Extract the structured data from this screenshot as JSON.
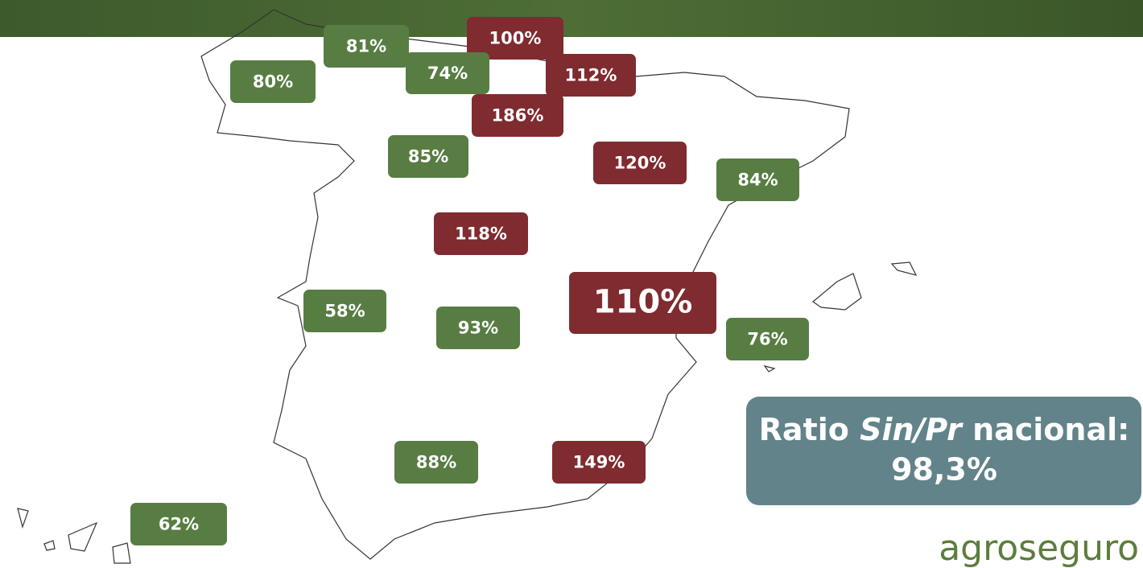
{
  "labels": [
    {
      "text": "81%",
      "color": "#587d43"
    },
    {
      "text": "100%",
      "color": "#7f2b2f"
    },
    {
      "text": "80%",
      "color": "#587d43"
    },
    {
      "text": "74%",
      "color": "#587d43"
    },
    {
      "text": "112%",
      "color": "#7f2b2f"
    },
    {
      "text": "186%",
      "color": "#7f2b2f"
    },
    {
      "text": "85%",
      "color": "#587d43"
    },
    {
      "text": "120%",
      "color": "#7f2b2f"
    },
    {
      "text": "84%",
      "color": "#587d43"
    },
    {
      "text": "118%",
      "color": "#7f2b2f"
    },
    {
      "text": "110%",
      "color": "#7f2b2f"
    },
    {
      "text": "58%",
      "color": "#587d43"
    },
    {
      "text": "93%",
      "color": "#587d43"
    },
    {
      "text": "76%",
      "color": "#587d43"
    },
    {
      "text": "88%",
      "color": "#587d43"
    },
    {
      "text": "149%",
      "color": "#7f2b2f"
    },
    {
      "text": "62%",
      "color": "#587d43"
    }
  ],
  "summary": {
    "prefix": "Ratio ",
    "italic": "Sin/Pr",
    "suffix": " nacional:",
    "value": "98,3%"
  },
  "logo": "agroseguro"
}
